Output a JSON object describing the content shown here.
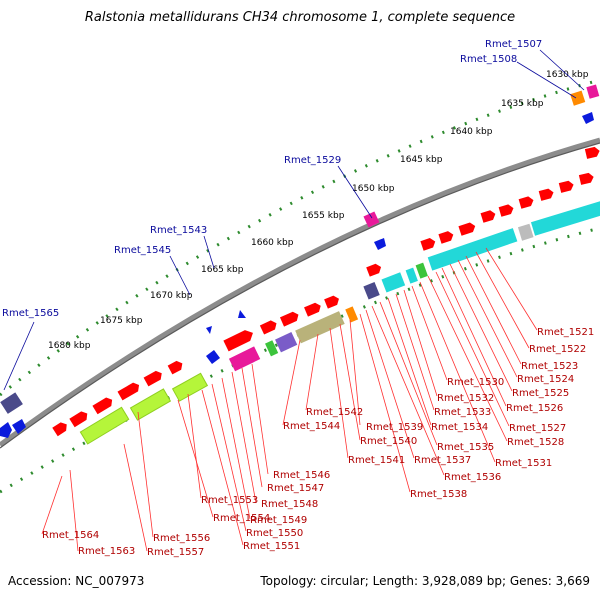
{
  "title": "Ralstonia metallidurans CH34 chromosome 1, complete sequence",
  "footer": {
    "accession": "Accession: NC_007973",
    "summary": "Topology: circular; Length: 3,928,089 bp; Genes: 3,669"
  },
  "colors": {
    "backbone": "#8c8c8c",
    "forward_gene": "#ff0000",
    "tick_dots": "#2e8b2e",
    "label_blue": "#0a0a9c",
    "label_red": "#b00000",
    "cyan": "#22d8d8",
    "lime": "#b5f53a",
    "olive": "#b9b27a",
    "magenta": "#e8199a",
    "purple": "#7a5cc8",
    "orange": "#ff8a00",
    "blue_feature": "#0b1bdc",
    "gray_feature": "#bcbcbc",
    "slate": "#4a4a8a"
  },
  "scale_labels": [
    "1630 kbp",
    "1635 kbp",
    "1640 kbp",
    "1645 kbp",
    "1650 kbp",
    "1655 kbp",
    "1660 kbp",
    "1665 kbp",
    "1670 kbp",
    "1675 kbp",
    "1680 kbp"
  ],
  "outer_labels": [
    "Rmet_1507",
    "Rmet_1508",
    "Rmet_1529",
    "Rmet_1543",
    "Rmet_1545",
    "Rmet_1565"
  ],
  "inner_labels": [
    "Rmet_1521",
    "Rmet_1522",
    "Rmet_1523",
    "Rmet_1524",
    "Rmet_1525",
    "Rmet_1526",
    "Rmet_1527",
    "Rmet_1528",
    "Rmet_1530",
    "Rmet_1531",
    "Rmet_1532",
    "Rmet_1533",
    "Rmet_1534",
    "Rmet_1535",
    "Rmet_1536",
    "Rmet_1537",
    "Rmet_1538",
    "Rmet_1539",
    "Rmet_1540",
    "Rmet_1541",
    "Rmet_1542",
    "Rmet_1544",
    "Rmet_1546",
    "Rmet_1547",
    "Rmet_1548",
    "Rmet_1549",
    "Rmet_1550",
    "Rmet_1551",
    "Rmet_1553",
    "Rmet_1554",
    "Rmet_1556",
    "Rmet_1557",
    "Rmet_1563",
    "Rmet_1564"
  ]
}
